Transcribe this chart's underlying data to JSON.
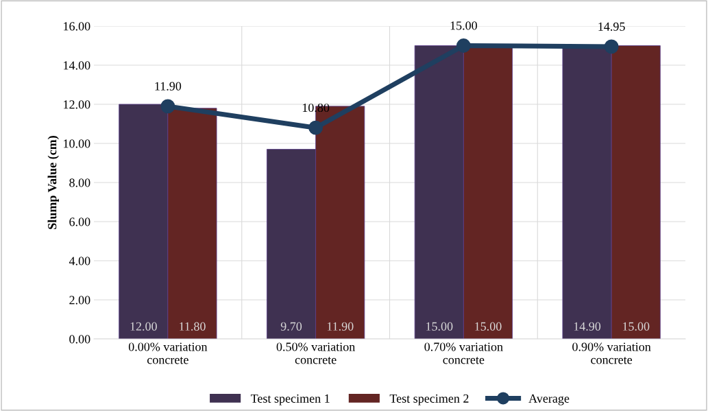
{
  "chart_data": {
    "type": "bar",
    "ylabel": "Slump Value (cm)",
    "categories": [
      "0.00% variation\nconcrete",
      "0.50% variation\nconcrete",
      "0.70% variation\nconcrete",
      "0.90% variation\nconcrete"
    ],
    "series": [
      {
        "name": "Test specimen 1",
        "color": "#3f3151",
        "values": [
          12.0,
          9.7,
          15.0,
          14.9
        ],
        "value_labels": [
          "12.00",
          "9.70",
          "15.00",
          "14.90"
        ]
      },
      {
        "name": "Test specimen 2",
        "color": "#632523",
        "values": [
          11.8,
          11.9,
          15.0,
          15.0
        ],
        "value_labels": [
          "11.80",
          "11.90",
          "15.00",
          "15.00"
        ]
      },
      {
        "name": "Average",
        "type": "line",
        "color": "#1f3f60",
        "marker": "circle",
        "values": [
          11.9,
          10.8,
          15.0,
          14.95
        ],
        "value_labels": [
          "11.90",
          "10.80",
          "15.00",
          "14.95"
        ]
      }
    ],
    "ylim": [
      0,
      16
    ],
    "yticks": [
      {
        "value": 0,
        "label": "0.00"
      },
      {
        "value": 2,
        "label": "2.00"
      },
      {
        "value": 4,
        "label": "4.00"
      },
      {
        "value": 6,
        "label": "6.00"
      },
      {
        "value": 8,
        "label": "8.00"
      },
      {
        "value": 10,
        "label": "10.00"
      },
      {
        "value": 12,
        "label": "12.00"
      },
      {
        "value": 14,
        "label": "14.00"
      },
      {
        "value": 16,
        "label": "16.00"
      }
    ],
    "grid": true,
    "legend": "bottom"
  }
}
